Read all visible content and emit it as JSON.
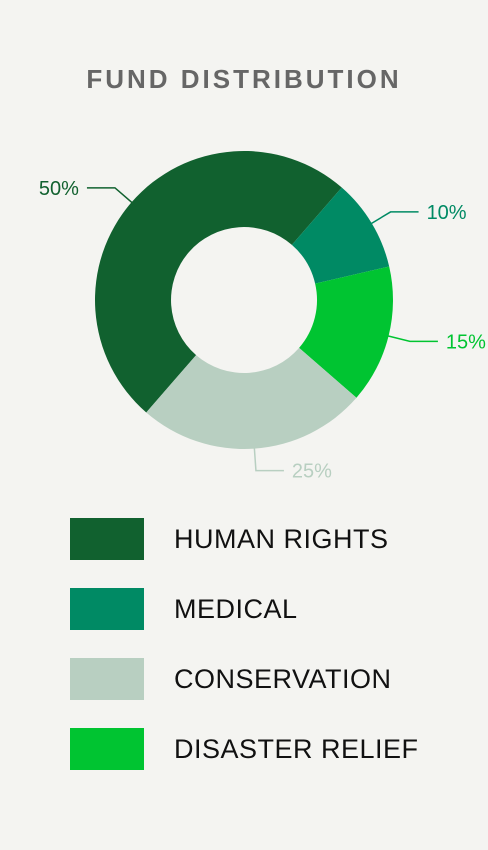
{
  "chart_data": {
    "type": "pie",
    "title": "FUND DISTRIBUTION",
    "categories": [
      "HUMAN RIGHTS",
      "MEDICAL",
      "DISASTER RELIEF",
      "CONSERVATION"
    ],
    "values": [
      50,
      10,
      15,
      25
    ],
    "labels": [
      "50%",
      "10%",
      "15%",
      "25%"
    ],
    "colors": [
      "#11612f",
      "#008a64",
      "#00c431",
      "#b8cfc1"
    ],
    "label_colors": [
      "#11612f",
      "#008a64",
      "#00c431",
      "#b8cfc1"
    ],
    "legend": [
      {
        "label": "HUMAN RIGHTS",
        "color": "#11612f"
      },
      {
        "label": "MEDICAL",
        "color": "#008a64"
      },
      {
        "label": "CONSERVATION",
        "color": "#b8cfc1"
      },
      {
        "label": "DISASTER RELIEF",
        "color": "#00c431"
      }
    ],
    "legend_position": "bottom",
    "donut": true
  }
}
